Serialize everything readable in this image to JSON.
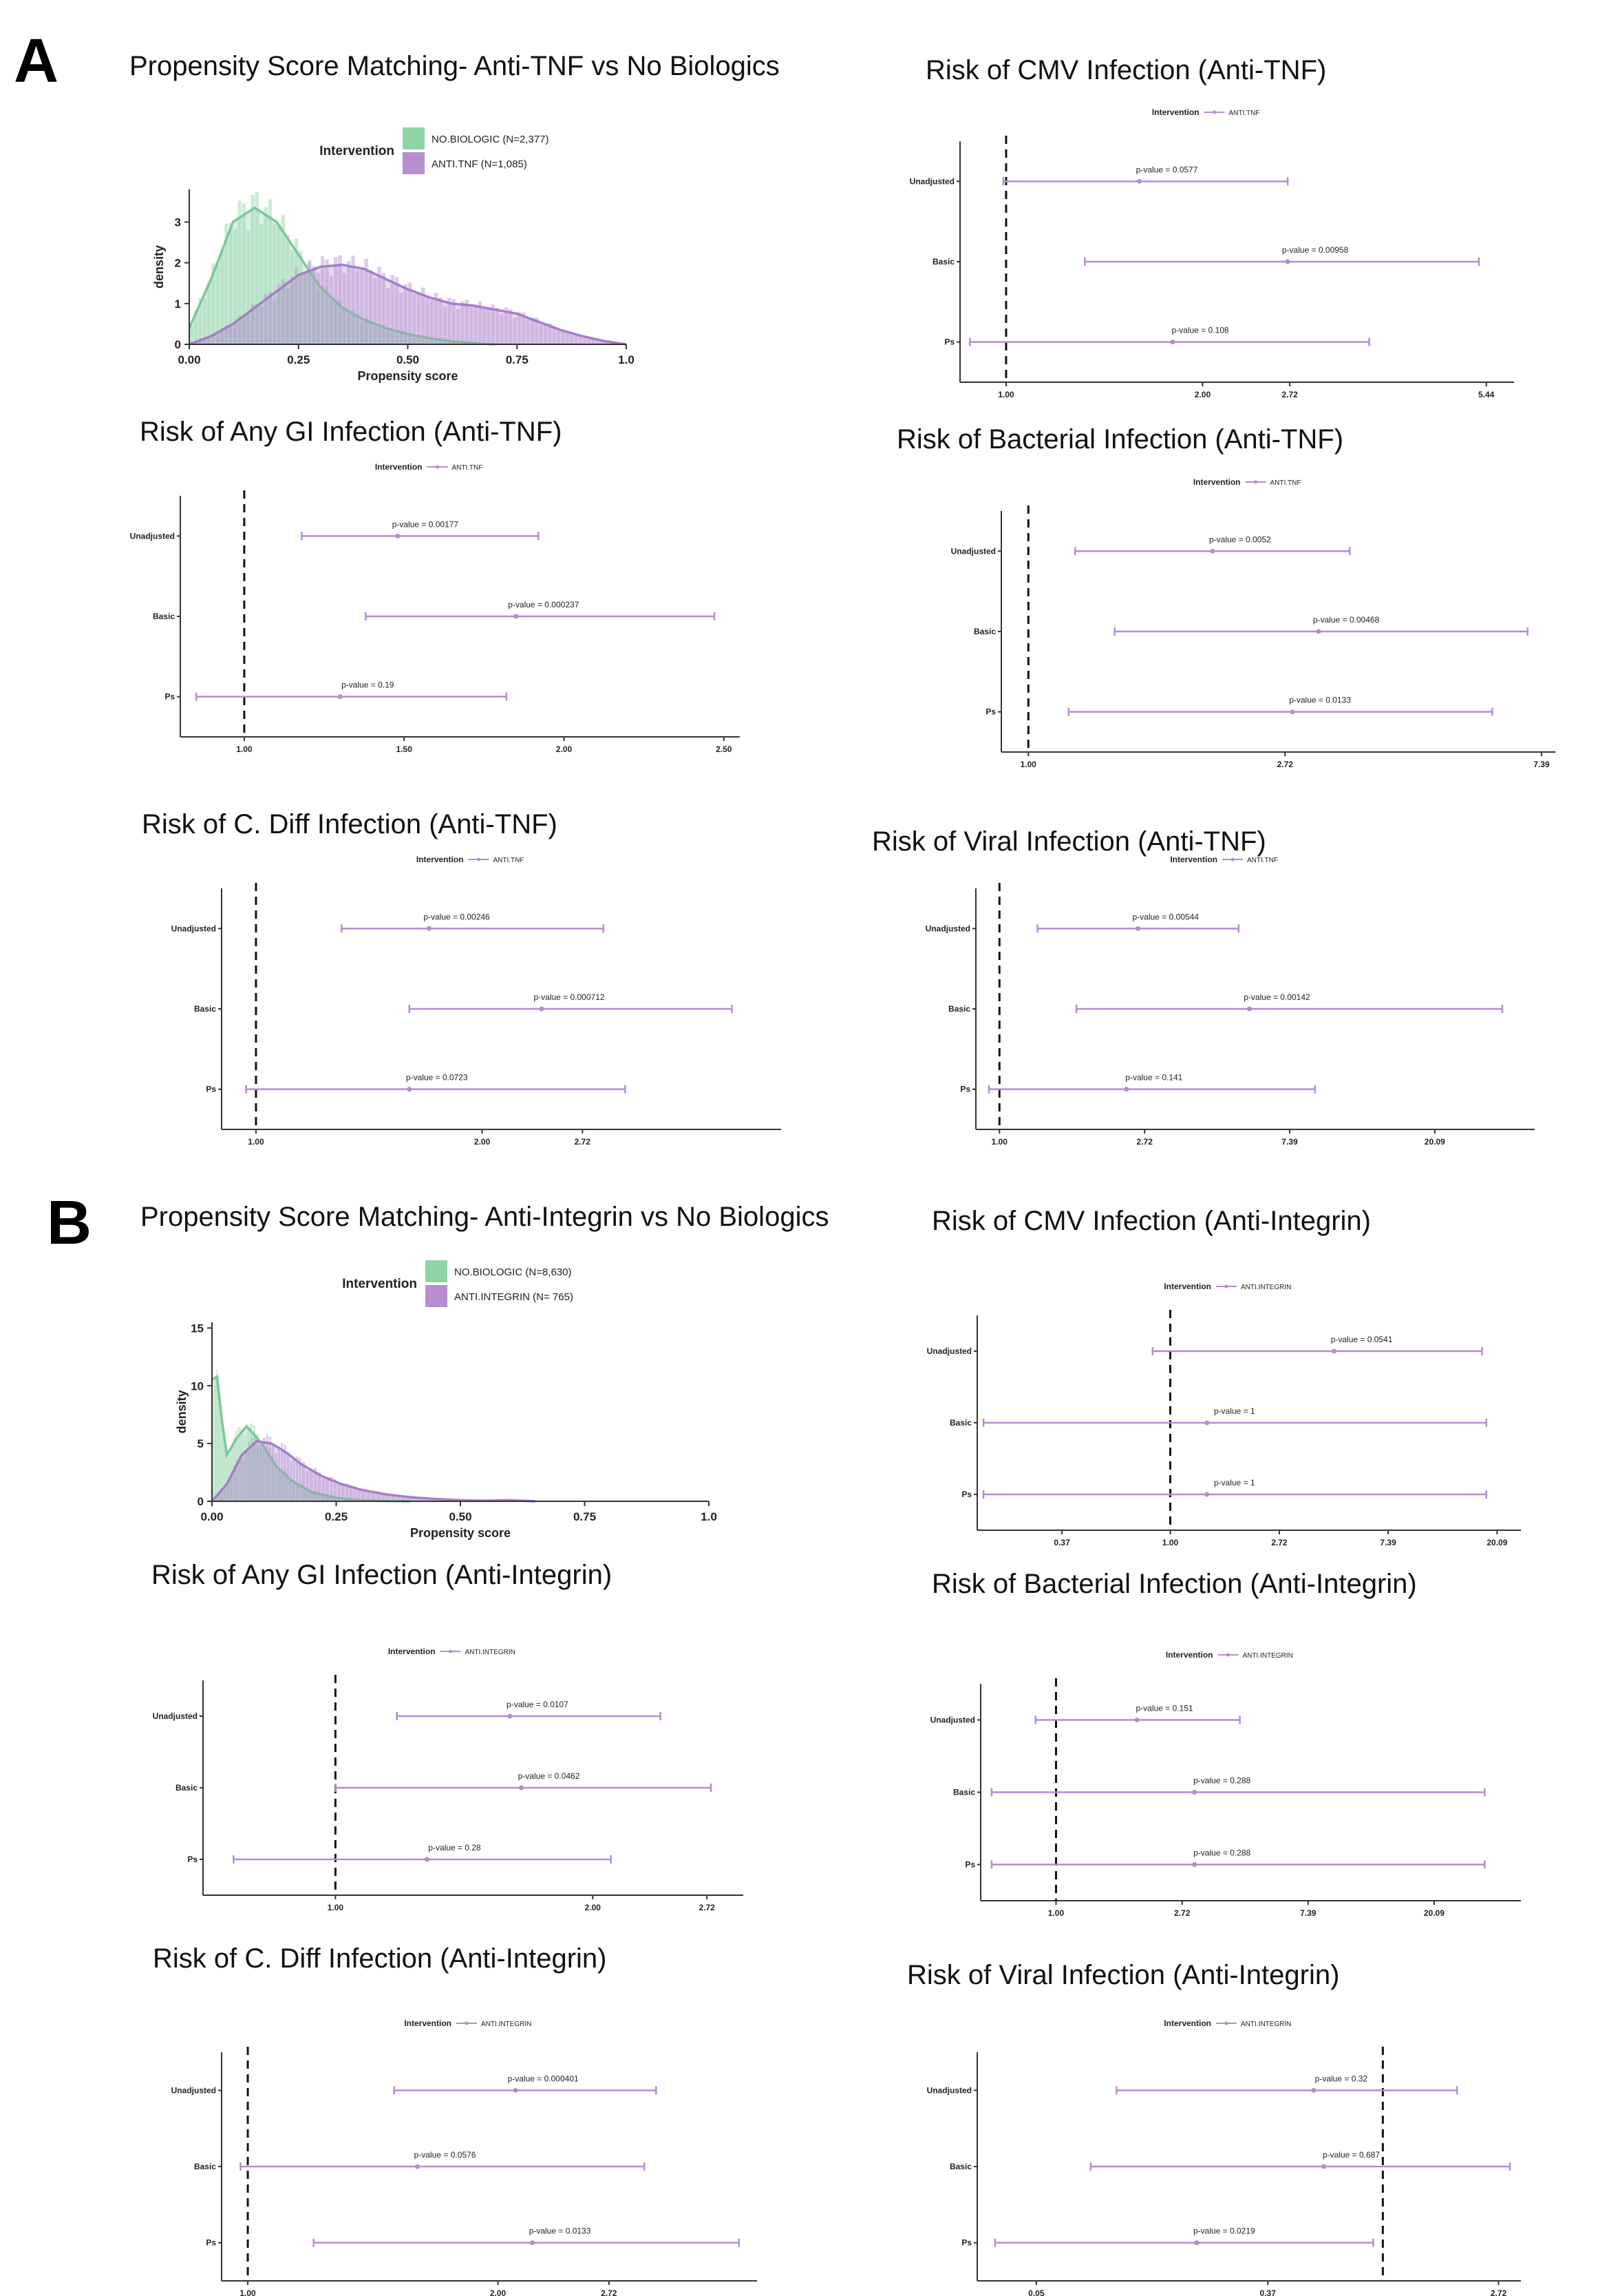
{
  "panels": [
    {
      "letter": "A"
    },
    {
      "letter": "B"
    }
  ],
  "colors": {
    "no_biologic": "#8fd3a6",
    "no_biologic_line": "#7cc797",
    "biologic": "#b58fd0",
    "biologic_line": "#a77dc7",
    "ci": "#b48cd0",
    "axis": "#333333"
  },
  "chart_data": [
    {
      "type": "area",
      "title": "Propensity Score Matching- Anti-TNF vs No Biologics",
      "xlabel": "Propensity score",
      "ylabel": "density",
      "xlim": [
        0,
        1
      ],
      "ylim": [
        0,
        3.8
      ],
      "xticks": [
        "0.00",
        "0.25",
        "0.50",
        "0.75",
        "1.0"
      ],
      "xtick_values": [
        0,
        0.25,
        0.5,
        0.75,
        1.0
      ],
      "yticks": [
        "0",
        "1",
        "2",
        "3"
      ],
      "ytick_values": [
        0,
        1,
        2,
        3
      ],
      "legend_title": "Intervention",
      "legend": [
        "NO.BIOLOGIC (N=2,377)",
        "ANTI.TNF (N=1,085)"
      ],
      "series": [
        {
          "name": "NO.BIOLOGIC",
          "x": [
            0,
            0.05,
            0.1,
            0.15,
            0.2,
            0.25,
            0.3,
            0.35,
            0.4,
            0.45,
            0.5,
            0.55,
            0.6,
            0.65,
            0.7
          ],
          "values": [
            0.4,
            1.6,
            3.0,
            3.35,
            3.0,
            2.2,
            1.4,
            0.9,
            0.6,
            0.4,
            0.25,
            0.15,
            0.08,
            0.03,
            0.0
          ]
        },
        {
          "name": "ANTI.TNF",
          "x": [
            0,
            0.05,
            0.1,
            0.15,
            0.2,
            0.25,
            0.3,
            0.35,
            0.4,
            0.45,
            0.5,
            0.55,
            0.6,
            0.65,
            0.7,
            0.75,
            0.8,
            0.85,
            0.9,
            0.95,
            1.0
          ],
          "values": [
            0.0,
            0.2,
            0.5,
            0.9,
            1.3,
            1.7,
            1.9,
            1.95,
            1.85,
            1.6,
            1.35,
            1.15,
            1.0,
            0.95,
            0.85,
            0.75,
            0.55,
            0.35,
            0.2,
            0.08,
            0.0
          ]
        }
      ]
    },
    {
      "type": "forest",
      "title": "Risk of CMV Infection (Anti-TNF)",
      "legend_title": "Intervention",
      "legend_label": "ANTI.TNF",
      "scale": "log",
      "xlim": [
        0.85,
        6.0
      ],
      "reference": 1.0,
      "xticks": [
        "1.00",
        "2.00",
        "2.72",
        "5.44"
      ],
      "xtick_values": [
        1.0,
        2.0,
        2.72,
        5.44
      ],
      "rows": [
        {
          "label": "Unadjusted",
          "estimate": 1.6,
          "lower": 0.99,
          "upper": 2.7,
          "pvalue": "p-value = 0.0577"
        },
        {
          "label": "Basic",
          "estimate": 2.7,
          "lower": 1.32,
          "upper": 5.3,
          "pvalue": "p-value = 0.00958"
        },
        {
          "label": "Ps",
          "estimate": 1.8,
          "lower": 0.88,
          "upper": 3.6,
          "pvalue": "p-value = 0.108"
        }
      ]
    },
    {
      "type": "forest",
      "title": "Risk of Any GI Infection (Anti-TNF)",
      "legend_title": "Intervention",
      "legend_label": "ANTI.TNF",
      "scale": "linear",
      "xlim": [
        0.8,
        2.55
      ],
      "reference": 1.0,
      "xticks": [
        "1.00",
        "1.50",
        "2.00",
        "2.50"
      ],
      "xtick_values": [
        1.0,
        1.5,
        2.0,
        2.5
      ],
      "rows": [
        {
          "label": "Unadjusted",
          "estimate": 1.48,
          "lower": 1.18,
          "upper": 1.92,
          "pvalue": "p-value = 0.00177"
        },
        {
          "label": "Basic",
          "estimate": 1.85,
          "lower": 1.38,
          "upper": 2.47,
          "pvalue": "p-value = 0.000237"
        },
        {
          "label": "Ps",
          "estimate": 1.3,
          "lower": 0.85,
          "upper": 1.82,
          "pvalue": "p-value = 0.19"
        }
      ]
    },
    {
      "type": "forest",
      "title": "Risk of Bacterial Infection (Anti-TNF)",
      "legend_title": "Intervention",
      "legend_label": "ANTI.TNF",
      "scale": "log",
      "xlim": [
        0.9,
        7.8
      ],
      "reference": 1.0,
      "xticks": [
        "1.00",
        "2.72",
        "7.39"
      ],
      "xtick_values": [
        1.0,
        2.72,
        7.39
      ],
      "rows": [
        {
          "label": "Unadjusted",
          "estimate": 2.05,
          "lower": 1.2,
          "upper": 3.5,
          "pvalue": "p-value = 0.0052"
        },
        {
          "label": "Basic",
          "estimate": 3.1,
          "lower": 1.4,
          "upper": 7.0,
          "pvalue": "p-value = 0.00468"
        },
        {
          "label": "Ps",
          "estimate": 2.8,
          "lower": 1.17,
          "upper": 6.1,
          "pvalue": "p-value = 0.0133"
        }
      ]
    },
    {
      "type": "forest",
      "title": "Risk of C. Diff Infection (Anti-TNF)",
      "legend_title": "Intervention",
      "legend_label": "ANTI.TNF",
      "scale": "log",
      "xlim": [
        0.9,
        5.0
      ],
      "reference": 1.0,
      "xticks": [
        "1.00",
        "2.00",
        "2.72"
      ],
      "xtick_values": [
        1.0,
        2.0,
        2.72
      ],
      "rows": [
        {
          "label": "Unadjusted",
          "estimate": 1.7,
          "lower": 1.3,
          "upper": 2.9,
          "pvalue": "p-value = 0.00246"
        },
        {
          "label": "Basic",
          "estimate": 2.4,
          "lower": 1.6,
          "upper": 4.3,
          "pvalue": "p-value = 0.000712"
        },
        {
          "label": "Ps",
          "estimate": 1.6,
          "lower": 0.97,
          "upper": 3.1,
          "pvalue": "p-value = 0.0723"
        }
      ]
    },
    {
      "type": "forest",
      "title": "Risk of Viral Infection (Anti-TNF)",
      "legend_title": "Intervention",
      "legend_label": "ANTI.TNF",
      "scale": "log",
      "xlim": [
        0.85,
        40
      ],
      "reference": 1.0,
      "xticks": [
        "1.00",
        "2.72",
        "7.39",
        "20.09"
      ],
      "xtick_values": [
        1.0,
        2.72,
        7.39,
        20.09
      ],
      "rows": [
        {
          "label": "Unadjusted",
          "estimate": 2.6,
          "lower": 1.3,
          "upper": 5.2,
          "pvalue": "p-value = 0.00544"
        },
        {
          "label": "Basic",
          "estimate": 5.6,
          "lower": 1.7,
          "upper": 32,
          "pvalue": "p-value = 0.00142"
        },
        {
          "label": "Ps",
          "estimate": 2.4,
          "lower": 0.93,
          "upper": 8.8,
          "pvalue": "p-value = 0.141"
        }
      ]
    },
    {
      "type": "area",
      "title": "Propensity Score Matching- Anti-Integrin vs No Biologics",
      "xlabel": "Propensity score",
      "ylabel": "density",
      "xlim": [
        0,
        1
      ],
      "ylim": [
        0,
        15.5
      ],
      "xticks": [
        "0.00",
        "0.25",
        "0.50",
        "0.75",
        "1.0"
      ],
      "xtick_values": [
        0,
        0.25,
        0.5,
        0.75,
        1.0
      ],
      "yticks": [
        "0",
        "5",
        "10",
        "15"
      ],
      "ytick_values": [
        0,
        5,
        10,
        15
      ],
      "legend_title": "Intervention",
      "legend": [
        "NO.BIOLOGIC (N=8,630)",
        "ANTI.INTEGRIN (N= 765)"
      ],
      "series": [
        {
          "name": "NO.BIOLOGIC",
          "x": [
            0,
            0.01,
            0.02,
            0.03,
            0.05,
            0.07,
            0.1,
            0.13,
            0.16,
            0.2,
            0.25,
            0.3,
            0.35,
            0.4
          ],
          "values": [
            10.5,
            10.8,
            7.0,
            4.0,
            5.5,
            6.5,
            5.0,
            3.0,
            1.8,
            0.8,
            0.3,
            0.1,
            0.03,
            0.0
          ]
        },
        {
          "name": "ANTI.INTEGRIN",
          "x": [
            0,
            0.03,
            0.06,
            0.09,
            0.12,
            0.15,
            0.18,
            0.22,
            0.26,
            0.3,
            0.35,
            0.4,
            0.45,
            0.5,
            0.55,
            0.6,
            0.65
          ],
          "values": [
            0.0,
            1.5,
            4.0,
            5.2,
            5.0,
            4.2,
            3.2,
            2.2,
            1.5,
            1.0,
            0.6,
            0.35,
            0.2,
            0.1,
            0.05,
            0.1,
            0.0
          ]
        }
      ]
    },
    {
      "type": "forest",
      "title": "Risk of CMV Infection (Anti-Integrin)",
      "legend_title": "Intervention",
      "legend_label": "ANTI.INTEGRIN",
      "scale": "log",
      "xlim": [
        0.17,
        25
      ],
      "reference": 1.0,
      "xticks": [
        "0.37",
        "1.00",
        "2.72",
        "7.39",
        "20.09"
      ],
      "xtick_values": [
        0.37,
        1.0,
        2.72,
        7.39,
        20.09
      ],
      "rows": [
        {
          "label": "Unadjusted",
          "estimate": 4.5,
          "lower": 0.85,
          "upper": 17.5,
          "pvalue": "p-value = 0.0541"
        },
        {
          "label": "Basic",
          "estimate": 1.4,
          "lower": 0.18,
          "upper": 18.2,
          "pvalue": "p-value = 1"
        },
        {
          "label": "Ps",
          "estimate": 1.4,
          "lower": 0.18,
          "upper": 18.2,
          "pvalue": "p-value = 1"
        }
      ]
    },
    {
      "type": "forest",
      "title": "Risk of Any GI Infection (Anti-Integrin)",
      "legend_title": "Intervention",
      "legend_label": "ANTI.INTEGRIN",
      "scale": "log",
      "xlim": [
        0.7,
        3.0
      ],
      "reference": 1.0,
      "xticks": [
        "1.00",
        "2.00",
        "2.72"
      ],
      "xtick_values": [
        1.0,
        2.0,
        2.72
      ],
      "rows": [
        {
          "label": "Unadjusted",
          "estimate": 1.6,
          "lower": 1.18,
          "upper": 2.4,
          "pvalue": "p-value = 0.0107"
        },
        {
          "label": "Basic",
          "estimate": 1.65,
          "lower": 1.0,
          "upper": 2.75,
          "pvalue": "p-value = 0.0462"
        },
        {
          "label": "Ps",
          "estimate": 1.28,
          "lower": 0.76,
          "upper": 2.1,
          "pvalue": "p-value = 0.28"
        }
      ]
    },
    {
      "type": "forest",
      "title": "Risk of Bacterial Infection (Anti-Integrin)",
      "legend_title": "Intervention",
      "legend_label": "ANTI.INTEGRIN",
      "scale": "log",
      "xlim": [
        0.55,
        40
      ],
      "reference": 1.0,
      "xticks": [
        "1.00",
        "2.72",
        "7.39",
        "20.09"
      ],
      "xtick_values": [
        1.0,
        2.72,
        7.39,
        20.09
      ],
      "rows": [
        {
          "label": "Unadjusted",
          "estimate": 1.9,
          "lower": 0.85,
          "upper": 4.3,
          "pvalue": "p-value = 0.151"
        },
        {
          "label": "Basic",
          "estimate": 3.0,
          "lower": 0.6,
          "upper": 30,
          "pvalue": "p-value = 0.288"
        },
        {
          "label": "Ps",
          "estimate": 3.0,
          "lower": 0.6,
          "upper": 30,
          "pvalue": "p-value = 0.288"
        }
      ]
    },
    {
      "type": "forest",
      "title": "Risk of C. Diff Infection (Anti-Integrin)",
      "legend_title": "Intervention",
      "legend_label": "ANTI.INTEGRIN",
      "scale": "log",
      "xlim": [
        0.93,
        4.1
      ],
      "reference": 1.0,
      "xticks": [
        "1.00",
        "2.00",
        "2.72"
      ],
      "xtick_values": [
        1.0,
        2.0,
        2.72
      ],
      "rows": [
        {
          "label": "Unadjusted",
          "estimate": 2.1,
          "lower": 1.5,
          "upper": 3.1,
          "pvalue": "p-value = 0.000401"
        },
        {
          "label": "Basic",
          "estimate": 1.6,
          "lower": 0.98,
          "upper": 3.0,
          "pvalue": "p-value = 0.0576"
        },
        {
          "label": "Ps",
          "estimate": 2.2,
          "lower": 1.2,
          "upper": 3.9,
          "pvalue": "p-value = 0.0133"
        }
      ]
    },
    {
      "type": "forest",
      "title": "Risk of Viral Infection (Anti-Integrin)",
      "legend_title": "Intervention",
      "legend_label": "ANTI.INTEGRIN",
      "scale": "log",
      "xlim": [
        0.03,
        3.3
      ],
      "reference": 1.0,
      "xticks": [
        "0.05",
        "0.37",
        "2.72"
      ],
      "xtick_values": [
        0.05,
        0.37,
        2.72
      ],
      "rows": [
        {
          "label": "Unadjusted",
          "estimate": 0.55,
          "lower": 0.1,
          "upper": 1.9,
          "pvalue": "p-value = 0.32"
        },
        {
          "label": "Basic",
          "estimate": 0.6,
          "lower": 0.08,
          "upper": 3.0,
          "pvalue": "p-value = 0.687"
        },
        {
          "label": "Ps",
          "estimate": 0.2,
          "lower": 0.035,
          "upper": 0.92,
          "pvalue": "p-value = 0.0219"
        }
      ]
    }
  ]
}
